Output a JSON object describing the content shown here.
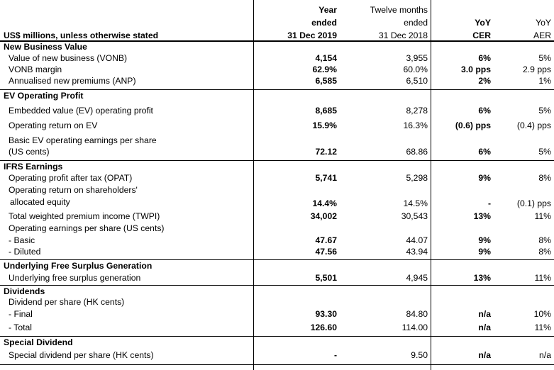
{
  "header": {
    "label": "US$ millions, unless otherwise stated",
    "col1": [
      "Year",
      "ended",
      "31 Dec 2019"
    ],
    "col2": [
      "Twelve months",
      "ended",
      "31 Dec 2018"
    ],
    "col3": [
      "YoY",
      "CER"
    ],
    "col4": [
      "YoY",
      "AER"
    ]
  },
  "sections": {
    "nbv": {
      "title": "New Business Value",
      "rows": [
        {
          "label": "Value of new business (VONB)",
          "v2019": "4,154",
          "v2018": "3,955",
          "cer": "6%",
          "aer": "5%"
        },
        {
          "label": "VONB margin",
          "v2019": "62.9%",
          "v2018": "60.0%",
          "cer": "3.0 pps",
          "aer": "2.9 pps"
        },
        {
          "label": "Annualised new premiums (ANP)",
          "v2019": "6,585",
          "v2018": "6,510",
          "cer": "2%",
          "aer": "1%"
        }
      ]
    },
    "ev": {
      "title": "EV Operating Profit",
      "rows": [
        {
          "label": "Embedded value (EV) operating profit",
          "v2019": "8,685",
          "v2018": "8,278",
          "cer": "6%",
          "aer": "5%"
        },
        {
          "label": "Operating return on EV",
          "v2019": "15.9%",
          "v2018": "16.3%",
          "cer": "(0.6) pps",
          "aer": "(0.4) pps"
        },
        {
          "label": "Basic EV operating earnings per share",
          "label2": "(US cents)",
          "v2019": "72.12",
          "v2018": "68.86",
          "cer": "6%",
          "aer": "5%"
        }
      ]
    },
    "ifrs": {
      "title": "IFRS Earnings",
      "rows": [
        {
          "label": "Operating profit after tax (OPAT)",
          "v2019": "5,741",
          "v2018": "5,298",
          "cer": "9%",
          "aer": "8%"
        },
        {
          "label": "Operating return on shareholders'",
          "label2": "allocated equity",
          "v2019": "14.4%",
          "v2018": "14.5%",
          "cer": "-",
          "aer": "(0.1) pps"
        },
        {
          "label": "Total weighted premium income (TWPI)",
          "v2019": "34,002",
          "v2018": "30,543",
          "cer": "13%",
          "aer": "11%"
        },
        {
          "label": "Operating earnings per share (US cents)"
        },
        {
          "label": "- Basic",
          "v2019": "47.67",
          "v2018": "44.07",
          "cer": "9%",
          "aer": "8%"
        },
        {
          "label": "- Diluted",
          "v2019": "47.56",
          "v2018": "43.94",
          "cer": "9%",
          "aer": "8%"
        }
      ]
    },
    "ufsg": {
      "title": "Underlying Free Surplus Generation",
      "rows": [
        {
          "label": "Underlying free surplus generation",
          "v2019": "5,501",
          "v2018": "4,945",
          "cer": "13%",
          "aer": "11%"
        }
      ]
    },
    "div": {
      "title": "Dividends",
      "rows": [
        {
          "label": "Dividend per share (HK cents)"
        },
        {
          "label": "- Final",
          "v2019": "93.30",
          "v2018": "84.80",
          "cer": "n/a",
          "aer": "10%"
        },
        {
          "label": "- Total",
          "v2019": "126.60",
          "v2018": "114.00",
          "cer": "n/a",
          "aer": "11%"
        }
      ]
    },
    "special": {
      "title": "Special Dividend",
      "rows": [
        {
          "label": "Special dividend per share (HK cents)",
          "v2019": "-",
          "v2018": "9.50",
          "cer": "n/a",
          "aer": "n/a"
        }
      ]
    }
  }
}
